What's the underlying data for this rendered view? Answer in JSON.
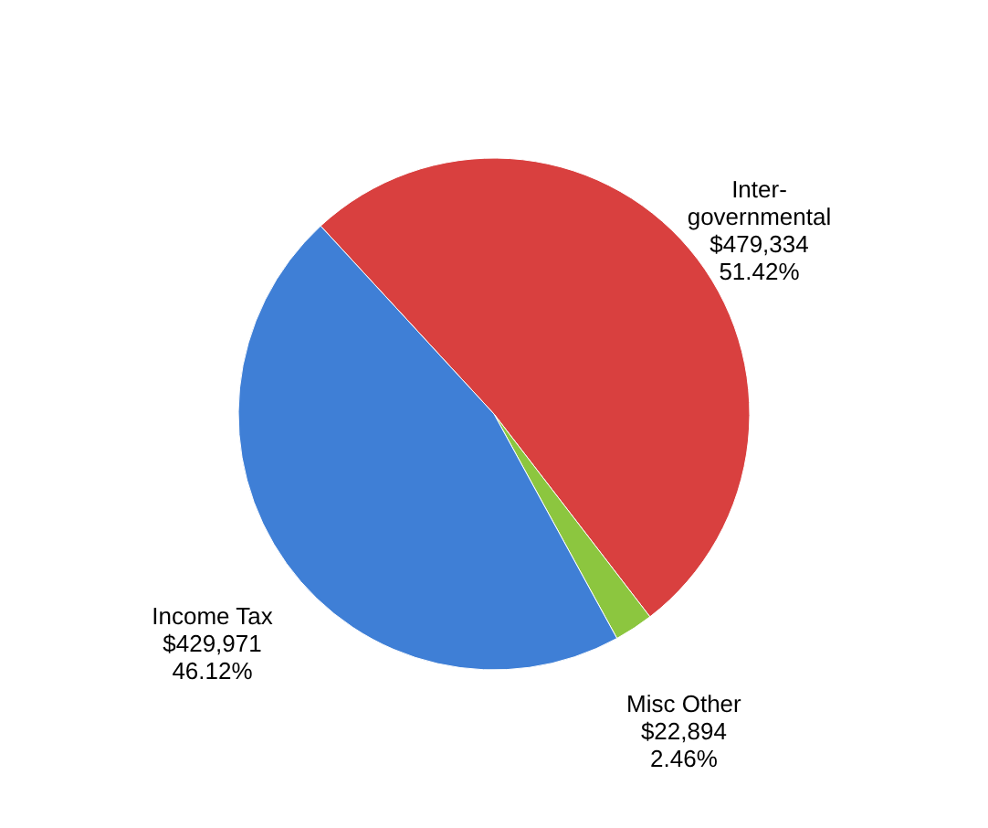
{
  "chart_data": {
    "type": "pie",
    "categories": [
      "Inter-governmental",
      "Misc Other",
      "Income Tax"
    ],
    "values": [
      479334,
      22894,
      429971
    ],
    "colors": [
      "#d9403f",
      "#8cc63f",
      "#3f7fd6"
    ],
    "value_labels": [
      "$479,334\n51.42%",
      "$22,894\n2.46%",
      "$429,971\n46.12%"
    ]
  }
}
